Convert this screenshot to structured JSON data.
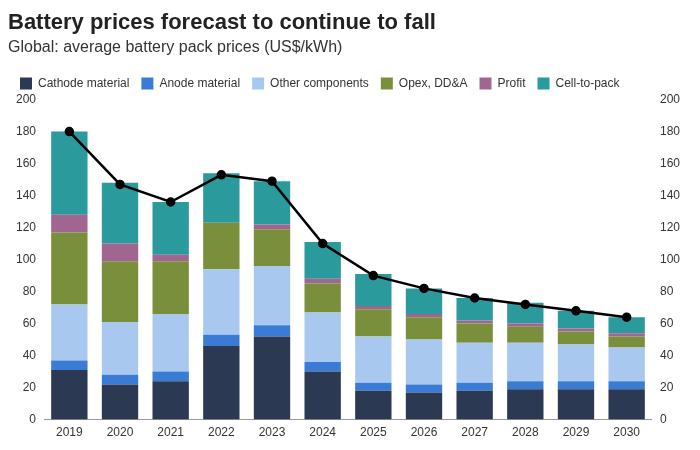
{
  "chart_data": {
    "type": "bar",
    "title": "Battery prices forecast to continue to fall",
    "subtitle": "Global: average battery pack prices (US$/kWh)",
    "categories": [
      "2019",
      "2020",
      "2021",
      "2022",
      "2023",
      "2024",
      "2025",
      "2026",
      "2027",
      "2028",
      "2029",
      "2030"
    ],
    "series": [
      {
        "name": "Cathode material",
        "type": "bar",
        "color": "#2b3a52",
        "values": [
          31,
          22,
          24,
          46,
          52,
          30,
          18,
          17,
          18,
          19,
          19,
          19
        ]
      },
      {
        "name": "Anode material",
        "type": "bar",
        "color": "#3a7bd5",
        "values": [
          6,
          6,
          6,
          7,
          7,
          6,
          5,
          5,
          5,
          5,
          5,
          5
        ]
      },
      {
        "name": "Other components",
        "type": "bar",
        "color": "#a9c8f0",
        "values": [
          35,
          33,
          36,
          41,
          37,
          31,
          29,
          28,
          25,
          24,
          23,
          21
        ]
      },
      {
        "name": "Opex, DD&A",
        "type": "bar",
        "color": "#7a8f3c",
        "values": [
          45,
          38,
          33,
          29,
          23,
          18,
          17,
          14,
          12,
          10,
          8,
          7
        ]
      },
      {
        "name": "Profit",
        "type": "bar",
        "color": "#a0668f",
        "values": [
          11,
          11,
          4,
          0,
          3,
          3,
          2,
          2,
          2,
          2,
          2,
          2
        ]
      },
      {
        "name": "Cell-to-pack",
        "type": "bar",
        "color": "#2a9a9c",
        "values": [
          52,
          38,
          33,
          31,
          27,
          23,
          20,
          16,
          14,
          13,
          11,
          10
        ]
      },
      {
        "type": "line",
        "color": "#000000",
        "marker": "circle",
        "values": [
          180,
          147,
          136,
          153,
          149,
          110,
          90,
          82,
          76,
          72,
          68,
          64
        ]
      }
    ],
    "stacked": true,
    "ylim": [
      0,
      200
    ],
    "yticks": [
      0,
      20,
      40,
      60,
      80,
      100,
      120,
      140,
      160,
      180,
      200
    ],
    "y2lim": [
      0,
      200
    ],
    "y2ticks": [
      0,
      20,
      40,
      60,
      80,
      100,
      120,
      140,
      160,
      180,
      200
    ],
    "grid": false,
    "legend": "top-left"
  }
}
